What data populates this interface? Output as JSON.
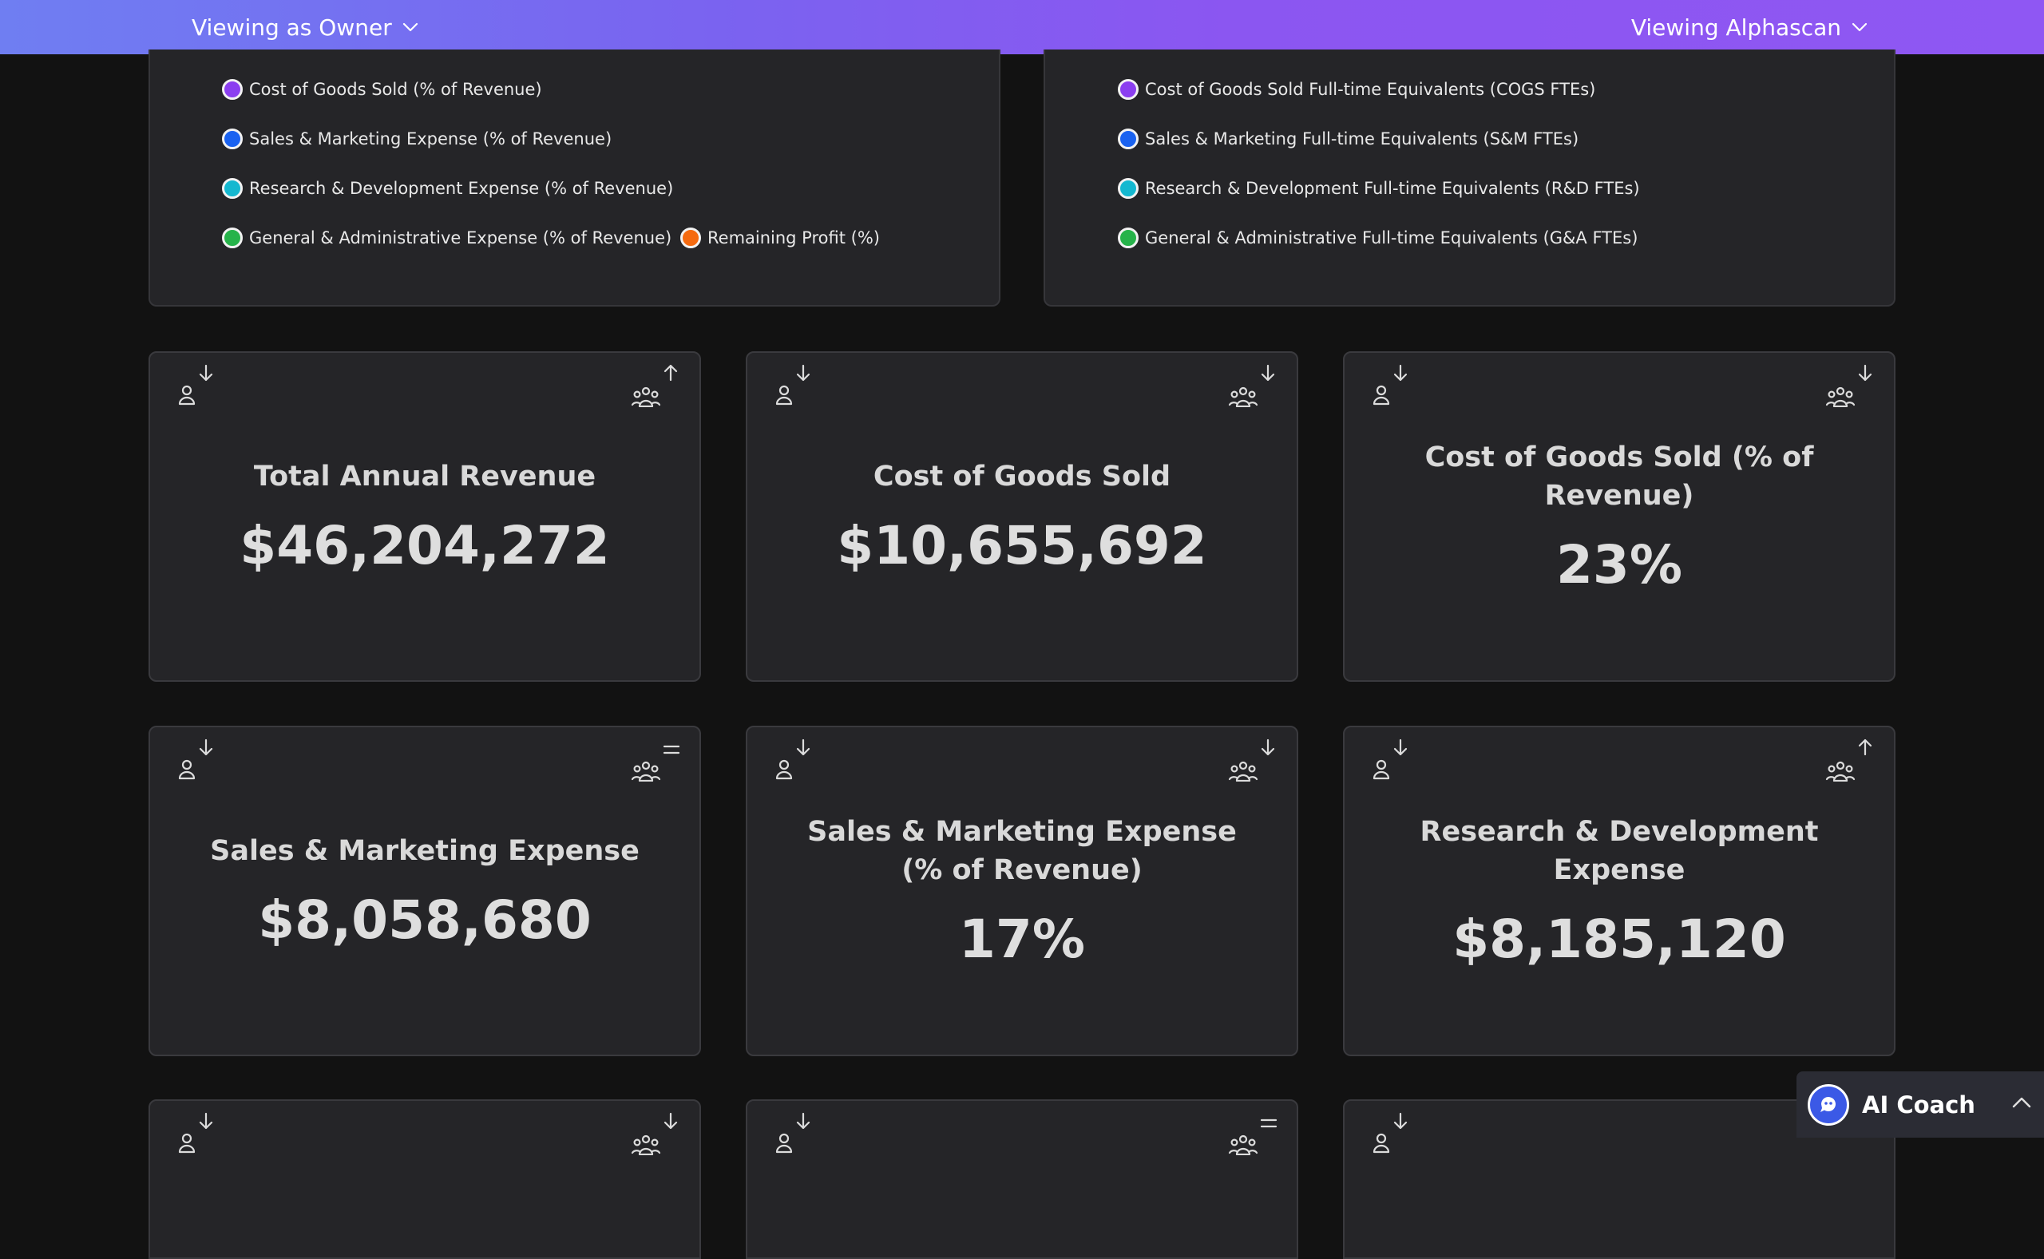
{
  "header": {
    "role_label": "Viewing as Owner",
    "company_label": "Viewing Alphascan"
  },
  "legend_left": [
    {
      "label": "Cost of Goods Sold (% of Revenue)",
      "color": "#8b3ff0"
    },
    {
      "label": "Sales & Marketing Expense (% of Revenue)",
      "color": "#1a62f0"
    },
    {
      "label": "Research & Development Expense (% of Revenue)",
      "color": "#14b8d0"
    },
    {
      "label": "General & Administrative Expense (% of Revenue)",
      "color": "#26b34a"
    },
    {
      "label": "Remaining Profit (%)",
      "color": "#f56a10"
    }
  ],
  "legend_right": [
    {
      "label": "Cost of Goods Sold Full-time Equivalents (COGS FTEs)",
      "color": "#8b3ff0"
    },
    {
      "label": "Sales & Marketing Full-time Equivalents (S&M FTEs)",
      "color": "#1a62f0"
    },
    {
      "label": "Research & Development Full-time Equivalents (R&D FTEs)",
      "color": "#14b8d0"
    },
    {
      "label": "General & Administrative Full-time Equivalents (G&A FTEs)",
      "color": "#26b34a"
    }
  ],
  "metrics": [
    {
      "title": "Total Annual Revenue",
      "value": "$46,204,272",
      "self_trend": "down",
      "peer_trend": "up"
    },
    {
      "title": "Cost of Goods Sold",
      "value": "$10,655,692",
      "self_trend": "down",
      "peer_trend": "down"
    },
    {
      "title": "Cost of Goods Sold (% of Revenue)",
      "value": "23%",
      "self_trend": "down",
      "peer_trend": "down"
    },
    {
      "title": "Sales & Marketing Expense",
      "value": "$8,058,680",
      "self_trend": "down",
      "peer_trend": "equal"
    },
    {
      "title": "Sales & Marketing Expense (% of Revenue)",
      "value": "17%",
      "self_trend": "down",
      "peer_trend": "down"
    },
    {
      "title": "Research & Development Expense",
      "value": "$8,185,120",
      "self_trend": "down",
      "peer_trend": "up"
    }
  ],
  "partial_cards": [
    {
      "self_trend": "down",
      "peer_trend": "down"
    },
    {
      "self_trend": "down",
      "peer_trend": "equal"
    },
    {
      "self_trend": "down",
      "peer_trend": ""
    }
  ],
  "ai_coach": {
    "label": "AI Coach"
  },
  "icons": {
    "person": "person-icon",
    "group": "group-icon",
    "arrow_down": "arrow-down-icon",
    "arrow_up": "arrow-up-icon",
    "equal": "equal-icon",
    "chevron_down": "chevron-down-icon",
    "chevron_up": "chevron-up-icon"
  }
}
